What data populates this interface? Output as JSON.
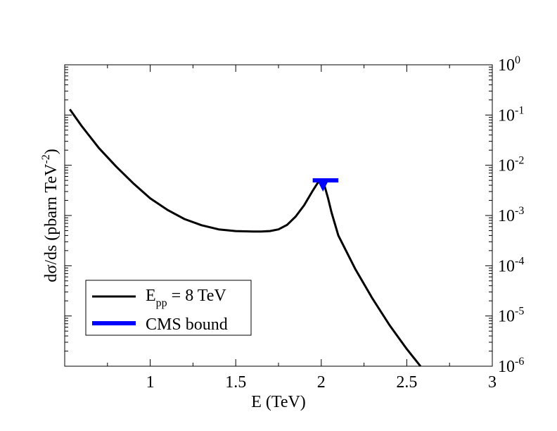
{
  "chart_data": {
    "type": "line",
    "xlabel": "E (TeV)",
    "ylabel": "dσ/ds (pbarn TeV^-2)",
    "ylabel_parts": {
      "main": "dσ/ds (pbarn TeV",
      "sup": "-2",
      "end": ")"
    },
    "xlim": [
      0.5,
      3.0
    ],
    "ylim": [
      1e-06,
      1
    ],
    "yscale": "log",
    "y_axis_side": "right",
    "grid": false,
    "x_ticks": [
      {
        "value": 1,
        "label": "1"
      },
      {
        "value": 1.5,
        "label": "1.5"
      },
      {
        "value": 2,
        "label": "2"
      },
      {
        "value": 2.5,
        "label": "2.5"
      },
      {
        "value": 3,
        "label": "3"
      }
    ],
    "y_ticks": [
      {
        "value": 1,
        "base": "10",
        "exp": "0"
      },
      {
        "value": 0.1,
        "base": "10",
        "exp": "-1"
      },
      {
        "value": 0.01,
        "base": "10",
        "exp": "-2"
      },
      {
        "value": 0.001,
        "base": "10",
        "exp": "-3"
      },
      {
        "value": 0.0001,
        "base": "10",
        "exp": "-4"
      },
      {
        "value": 1e-05,
        "base": "10",
        "exp": "-5"
      },
      {
        "value": 1e-06,
        "base": "10",
        "exp": "-6"
      }
    ],
    "legend_position": "bottom-left",
    "series": [
      {
        "name": "E_pp = 8 TeV",
        "legend": {
          "main": "E",
          "sub": "pp",
          "rest": " = 8 TeV"
        },
        "color": "#000000",
        "x": [
          0.53,
          0.6,
          0.7,
          0.8,
          0.9,
          1.0,
          1.1,
          1.2,
          1.3,
          1.4,
          1.5,
          1.6,
          1.65,
          1.7,
          1.75,
          1.8,
          1.85,
          1.9,
          1.95,
          1.98,
          2.0,
          2.02,
          2.04,
          2.06,
          2.1,
          2.2,
          2.3,
          2.4,
          2.5,
          2.58
        ],
        "y": [
          0.13,
          0.06,
          0.022,
          0.0095,
          0.0044,
          0.0022,
          0.0013,
          0.00085,
          0.00064,
          0.00053,
          0.00049,
          0.00048,
          0.00048,
          0.00049,
          0.00053,
          0.00065,
          0.00095,
          0.0016,
          0.0031,
          0.0045,
          0.0048,
          0.0038,
          0.0022,
          0.00115,
          0.0004,
          8.5e-05,
          2.2e-05,
          6.5e-06,
          2.2e-06,
          1e-06
        ]
      },
      {
        "name": "CMS bound",
        "legend": {
          "main": "CMS bound",
          "sub": "",
          "rest": ""
        },
        "color": "#0000ff",
        "type": "upper-limit",
        "x_range": [
          1.95,
          2.1
        ],
        "y": 0.005,
        "arrow_to": 0.0034,
        "arrow_x": 2.01
      }
    ]
  }
}
